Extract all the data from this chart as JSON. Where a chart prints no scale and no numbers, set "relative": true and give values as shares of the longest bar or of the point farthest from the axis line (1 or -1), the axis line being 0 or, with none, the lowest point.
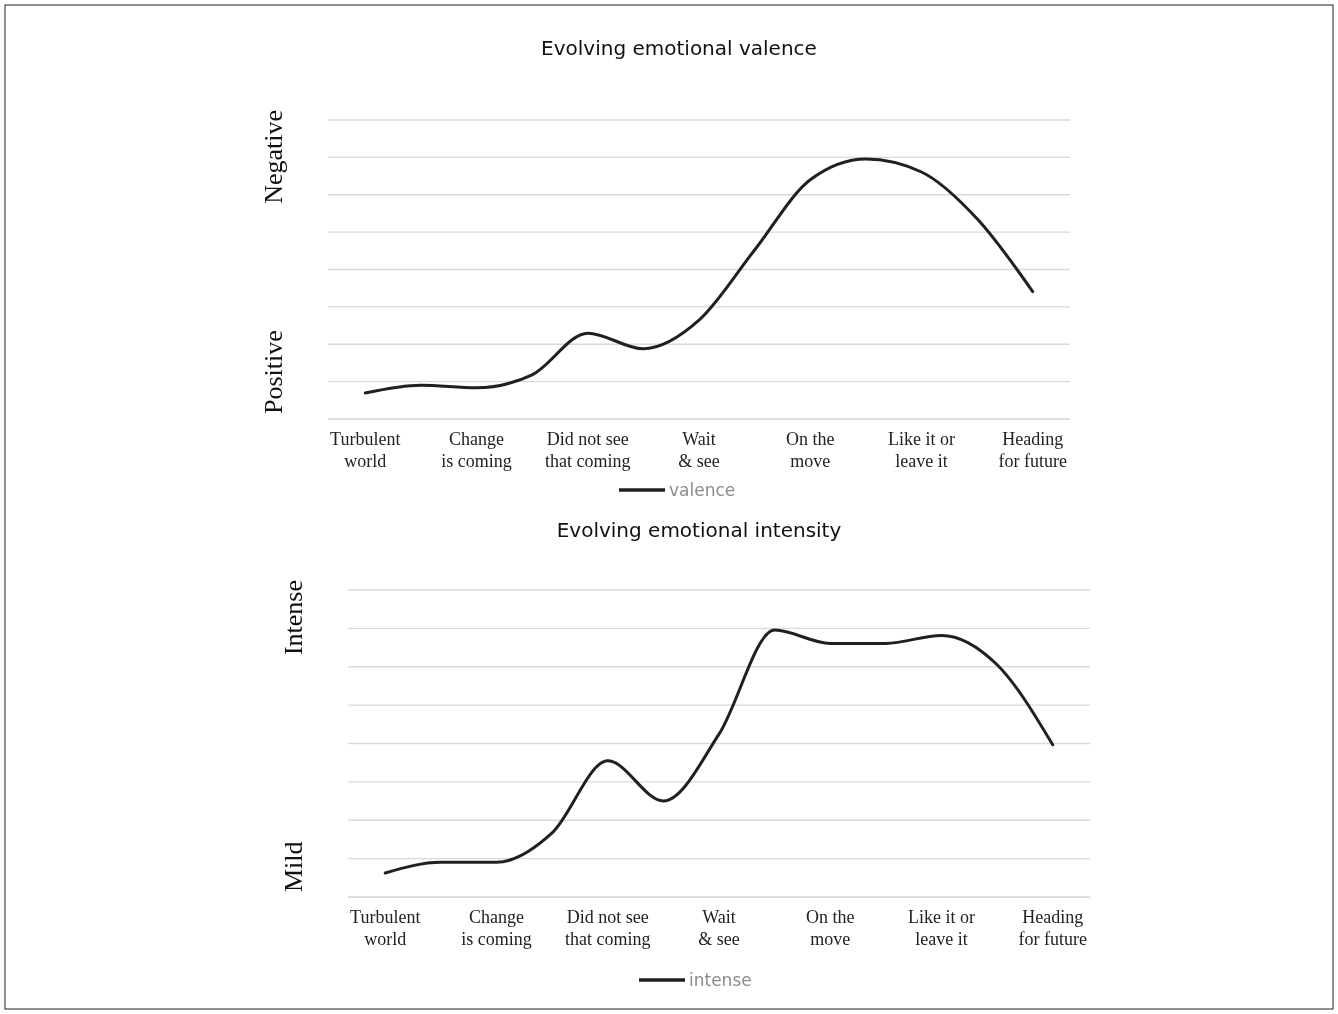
{
  "chart_data": [
    {
      "type": "line",
      "title": "Evolving emotional valence",
      "relative": true,
      "grid": true,
      "legend": "bottom",
      "annotations": [
        "Negative",
        "Positive"
      ],
      "categories": [
        "Turbulent world",
        null,
        "Change is coming",
        null,
        "Did not see that coming",
        null,
        "Wait & see",
        null,
        "On the move",
        null,
        "Like it or leave it",
        null,
        "Heading for future"
      ],
      "series": [
        {
          "name": "valence",
          "color": "#231f20",
          "values": [
            0.1,
            0.13,
            0.12,
            0.17,
            0.33,
            0.27,
            0.38,
            0.65,
            0.92,
            1.0,
            0.95,
            0.77,
            0.49
          ]
        }
      ]
    },
    {
      "type": "line",
      "title": "Evolving emotional intensity",
      "relative": true,
      "grid": true,
      "legend": "bottom",
      "annotations": [
        "Intense",
        "Mild"
      ],
      "categories": [
        "Turbulent world",
        null,
        "Change is coming",
        null,
        "Did not see that coming",
        null,
        "Wait & see",
        null,
        "On the move",
        null,
        "Like it or leave it",
        null,
        "Heading for future"
      ],
      "series": [
        {
          "name": "intense",
          "color": "#231f20",
          "values": [
            0.09,
            0.13,
            0.13,
            0.24,
            0.51,
            0.36,
            0.61,
            1.0,
            0.95,
            0.95,
            0.98,
            0.87,
            0.57
          ]
        }
      ]
    }
  ]
}
